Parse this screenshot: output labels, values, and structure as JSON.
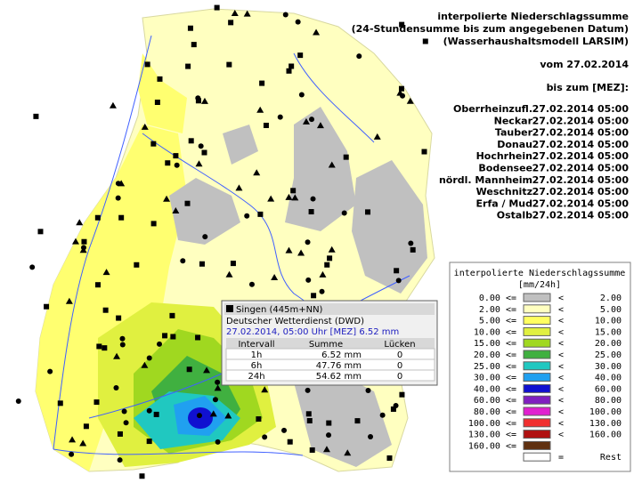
{
  "header": {
    "title_lines": [
      "interpolierte Niederschlagssumme",
      "(24-Stundensumme bis zum angegebenen Datum)",
      "(Wasserhaushaltsmodell LARSIM)"
    ],
    "date": "vom 27.02.2014",
    "until": "bis zum [MEZ]:"
  },
  "rivers": [
    {
      "name": "Oberrheinzufl.",
      "time": "27.02.2014 05:00"
    },
    {
      "name": "Neckar",
      "time": "27.02.2014 05:00"
    },
    {
      "name": "Tauber",
      "time": "27.02.2014 05:00"
    },
    {
      "name": "Donau",
      "time": "27.02.2014 05:00"
    },
    {
      "name": "Hochrhein",
      "time": "27.02.2014 05:00"
    },
    {
      "name": "Bodensee",
      "time": "27.02.2014 05:00"
    },
    {
      "name": "nördl. Mannheim",
      "time": "27.02.2014 05:00"
    },
    {
      "name": "Weschnitz",
      "time": "27.02.2014 05:00"
    },
    {
      "name": "Erfa / Mud",
      "time": "27.02.2014 05:00"
    },
    {
      "name": "Ostalb",
      "time": "27.02.2014 05:00"
    }
  ],
  "legend": {
    "title": "interpolierte Niederschlagssumme",
    "unit": "[mm/24h]",
    "rows": [
      {
        "from": "0.00 <=",
        "op": "<",
        "to": "2.00",
        "color": "#c0c0c0"
      },
      {
        "from": "2.00 <=",
        "op": "<",
        "to": "5.00",
        "color": "#ffffc0"
      },
      {
        "from": "5.00 <=",
        "op": "<",
        "to": "10.00",
        "color": "#ffff60"
      },
      {
        "from": "10.00 <=",
        "op": "<",
        "to": "15.00",
        "color": "#e0f040"
      },
      {
        "from": "15.00 <=",
        "op": "<",
        "to": "20.00",
        "color": "#a0d820"
      },
      {
        "from": "20.00 <=",
        "op": "<",
        "to": "25.00",
        "color": "#40b040"
      },
      {
        "from": "25.00 <=",
        "op": "<",
        "to": "30.00",
        "color": "#20c8c0"
      },
      {
        "from": "30.00 <=",
        "op": "<",
        "to": "40.00",
        "color": "#20a0f0"
      },
      {
        "from": "40.00 <=",
        "op": "<",
        "to": "60.00",
        "color": "#1010d0"
      },
      {
        "from": "60.00 <=",
        "op": "<",
        "to": "80.00",
        "color": "#8020c0"
      },
      {
        "from": "80.00 <=",
        "op": "<",
        "to": "100.00",
        "color": "#e020d0"
      },
      {
        "from": "100.00 <=",
        "op": "<",
        "to": "130.00",
        "color": "#f03030"
      },
      {
        "from": "130.00 <=",
        "op": "<",
        "to": "160.00",
        "color": "#b01010"
      },
      {
        "from": "160.00 <=",
        "op": "",
        "to": "",
        "color": "#603010"
      }
    ],
    "rest": {
      "op": "=",
      "label": "Rest",
      "color": "#ffffff"
    }
  },
  "tooltip": {
    "station": "Singen (445m+NN)",
    "source": "Deutscher Wetterdienst (DWD)",
    "time": "27.02.2014, 05:00 Uhr [MEZ] 6.52 mm",
    "columns": [
      "Intervall",
      "Summe",
      "Lücken"
    ],
    "rows": [
      [
        "1h",
        "6.52 mm",
        "0"
      ],
      [
        "6h",
        "47.76 mm",
        "0"
      ],
      [
        "24h",
        "54.62 mm",
        "0"
      ]
    ]
  }
}
